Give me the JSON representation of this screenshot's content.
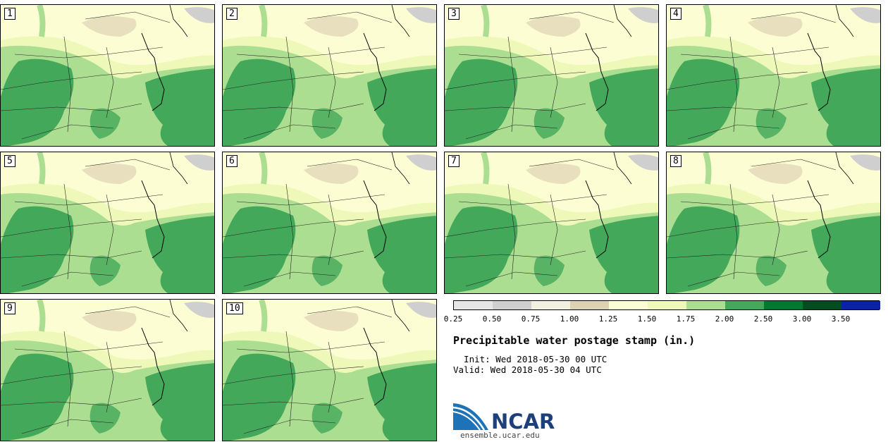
{
  "panels": [
    {
      "label": "1"
    },
    {
      "label": "2"
    },
    {
      "label": "3"
    },
    {
      "label": "4"
    },
    {
      "label": "5"
    },
    {
      "label": "6"
    },
    {
      "label": "7"
    },
    {
      "label": "8"
    },
    {
      "label": "9"
    },
    {
      "label": "10"
    }
  ],
  "legend": {
    "ticks": [
      "0.25",
      "0.50",
      "0.75",
      "1.00",
      "1.25",
      "1.50",
      "1.75",
      "2.00",
      "2.50",
      "3.00",
      "3.50"
    ],
    "colors": [
      "#e6e6e6",
      "#cfcfcf",
      "#f3f0e0",
      "#ddd2b4",
      "#fdfdd3",
      "#eef8b9",
      "#abde90",
      "#43a85a",
      "#007a30",
      "#004d20",
      "#0a22a8"
    ]
  },
  "title": "Precipitable water postage stamp (in.)",
  "init": "  Init: Wed 2018-05-30 00 UTC",
  "valid": "Valid: Wed 2018-05-30 04 UTC",
  "logo": {
    "text": "NCAR",
    "url": "ensemble.ucar.edu"
  }
}
